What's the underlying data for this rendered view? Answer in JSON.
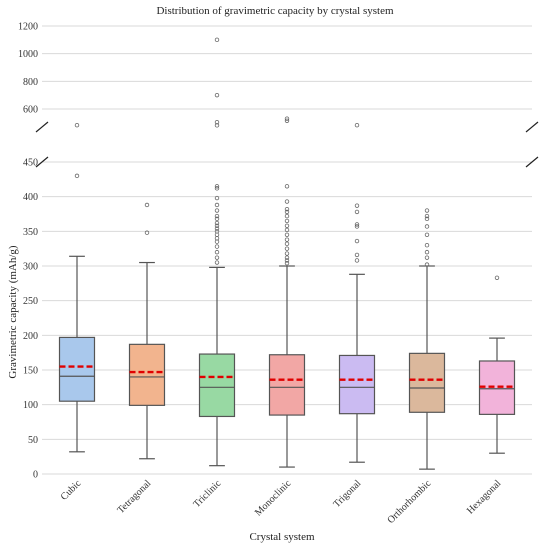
{
  "chart_data": {
    "type": "box",
    "title": "Distribution of gravimetric capacity by crystal system",
    "xlabel": "Crystal system",
    "ylabel": "Gravimetric capacity (mAh/g)",
    "broken_axis": true,
    "upper_ylim": [
      470,
      1200
    ],
    "lower_ylim": [
      0,
      450
    ],
    "upper_yticks": [
      "600",
      "800",
      "1000",
      "1200"
    ],
    "lower_yticks": [
      "0",
      "50",
      "100",
      "150",
      "200",
      "250",
      "300",
      "350",
      "400",
      "450"
    ],
    "grid": true,
    "categories": [
      "Cubic",
      "Tetragonal",
      "Triclinic",
      "Monoclinic",
      "Trigonal",
      "Orthorhombic",
      "Hexagonal"
    ],
    "colors": [
      "#a9c8ec",
      "#f2b48e",
      "#98d9a3",
      "#f2a7a5",
      "#cbbbf2",
      "#dbb89c",
      "#f2b3da"
    ],
    "median_color": "#555555",
    "mean_color": "#e00000",
    "boxes": [
      {
        "min": 32,
        "q1": 105,
        "median": 141,
        "mean": 155,
        "q3": 197,
        "max": 314,
        "outliers": [
          430,
          483
        ]
      },
      {
        "min": 22,
        "q1": 99,
        "median": 140,
        "mean": 147,
        "q3": 187,
        "max": 305,
        "outliers": [
          348,
          388
        ]
      },
      {
        "min": 12,
        "q1": 83,
        "median": 125,
        "mean": 140,
        "q3": 173,
        "max": 298,
        "outliers": [
          305,
          312,
          320,
          328,
          335,
          340,
          345,
          350,
          354,
          358,
          362,
          368,
          372,
          380,
          388,
          398,
          412,
          415,
          482,
          505,
          700,
          1100
        ]
      },
      {
        "min": 10,
        "q1": 85,
        "median": 125,
        "mean": 136,
        "q3": 172,
        "max": 300,
        "outliers": [
          304,
          308,
          312,
          318,
          325,
          332,
          338,
          345,
          352,
          358,
          365,
          372,
          378,
          382,
          393,
          415,
          515,
          530
        ]
      },
      {
        "min": 17,
        "q1": 87,
        "median": 125,
        "mean": 136,
        "q3": 171,
        "max": 288,
        "outliers": [
          308,
          316,
          336,
          357,
          360,
          378,
          387,
          483
        ]
      },
      {
        "min": 7,
        "q1": 89,
        "median": 124,
        "mean": 136,
        "q3": 174,
        "max": 300,
        "outliers": [
          302,
          312,
          320,
          330,
          345,
          357,
          368,
          372,
          380
        ]
      },
      {
        "min": 30,
        "q1": 86,
        "median": 123,
        "mean": 126,
        "q3": 163,
        "max": 196,
        "outliers": [
          283
        ]
      }
    ]
  }
}
